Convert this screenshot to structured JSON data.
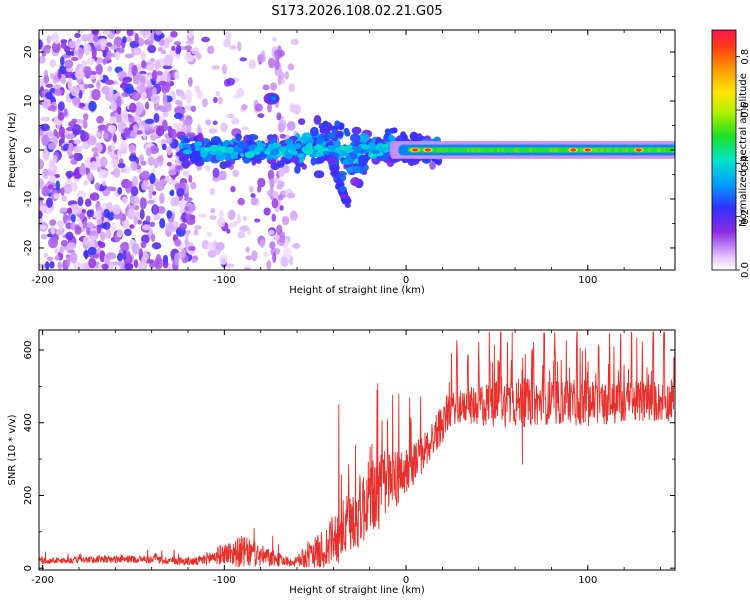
{
  "title": "S173.2026.108.02.21.G05",
  "chart_data": [
    {
      "type": "heatmap",
      "title": "S173.2026.108.02.21.G05",
      "xlabel": "Height of straight line (km)",
      "ylabel": "Frequency (Hz)",
      "xlim": [
        -202,
        148
      ],
      "ylim": [
        -24.5,
        24.5
      ],
      "xticks": [
        -200,
        -100,
        0,
        100
      ],
      "xtick_labels": [
        "-200",
        "-100",
        "0",
        "100"
      ],
      "yticks": [
        -20,
        -10,
        0,
        10,
        20
      ],
      "ytick_labels": [
        "-20",
        "-10",
        "0",
        "10",
        "20"
      ],
      "colorbar": {
        "label": "Normalized spectral amplitude",
        "range": [
          0,
          0.9
        ],
        "ticks": [
          0,
          0.2,
          0.4,
          0.6,
          0.8
        ],
        "tick_labels": [
          "0.0",
          "0.2",
          "0.4",
          "0.6",
          "0.8"
        ]
      },
      "features": {
        "noise_region_x": [
          -202,
          -118
        ],
        "sparse_region_x": [
          -118,
          -60
        ],
        "signal_start_x": -125,
        "steady_line_start_x": 18,
        "steady_line_freq": 0,
        "strong_blob": {
          "x": -73,
          "y": 10.5
        },
        "tail_blob": {
          "x": -35,
          "y": -9
        },
        "hot_spots_x": [
          5,
          12,
          92,
          100,
          128
        ]
      }
    },
    {
      "type": "line",
      "xlabel": "Height of straight line (km)",
      "ylabel": "SNR (10 * v/v)",
      "xlim": [
        -202,
        148
      ],
      "ylim": [
        -5,
        655
      ],
      "xticks": [
        -200,
        -100,
        0,
        100
      ],
      "xtick_labels": [
        "-200",
        "-100",
        "0",
        "100"
      ],
      "yticks": [
        0,
        200,
        400,
        600
      ],
      "ytick_labels": [
        "0",
        "200",
        "400",
        "600"
      ],
      "color": "#e8302c",
      "envelope_x": [
        -202,
        -150,
        -115,
        -100,
        -90,
        -75,
        -62,
        -45,
        -30,
        -20,
        -10,
        0,
        10,
        20,
        25,
        30,
        40,
        60,
        80,
        100,
        120,
        148
      ],
      "envelope_base": [
        20,
        25,
        18,
        40,
        45,
        28,
        15,
        50,
        130,
        190,
        230,
        265,
        320,
        400,
        440,
        440,
        450,
        455,
        455,
        455,
        455,
        460
      ],
      "envelope_amp": [
        8,
        10,
        12,
        30,
        45,
        25,
        10,
        60,
        95,
        110,
        105,
        60,
        55,
        55,
        45,
        42,
        60,
        70,
        60,
        65,
        60,
        55
      ],
      "spikes": [
        {
          "x": -37,
          "y": 450
        },
        {
          "x": -16,
          "y": 490
        },
        {
          "x": -4,
          "y": 480
        },
        {
          "x": 2,
          "y": 470
        },
        {
          "x": 10,
          "y": 330
        }
      ],
      "dips": [
        {
          "x": 64,
          "y": 285
        }
      ]
    }
  ]
}
